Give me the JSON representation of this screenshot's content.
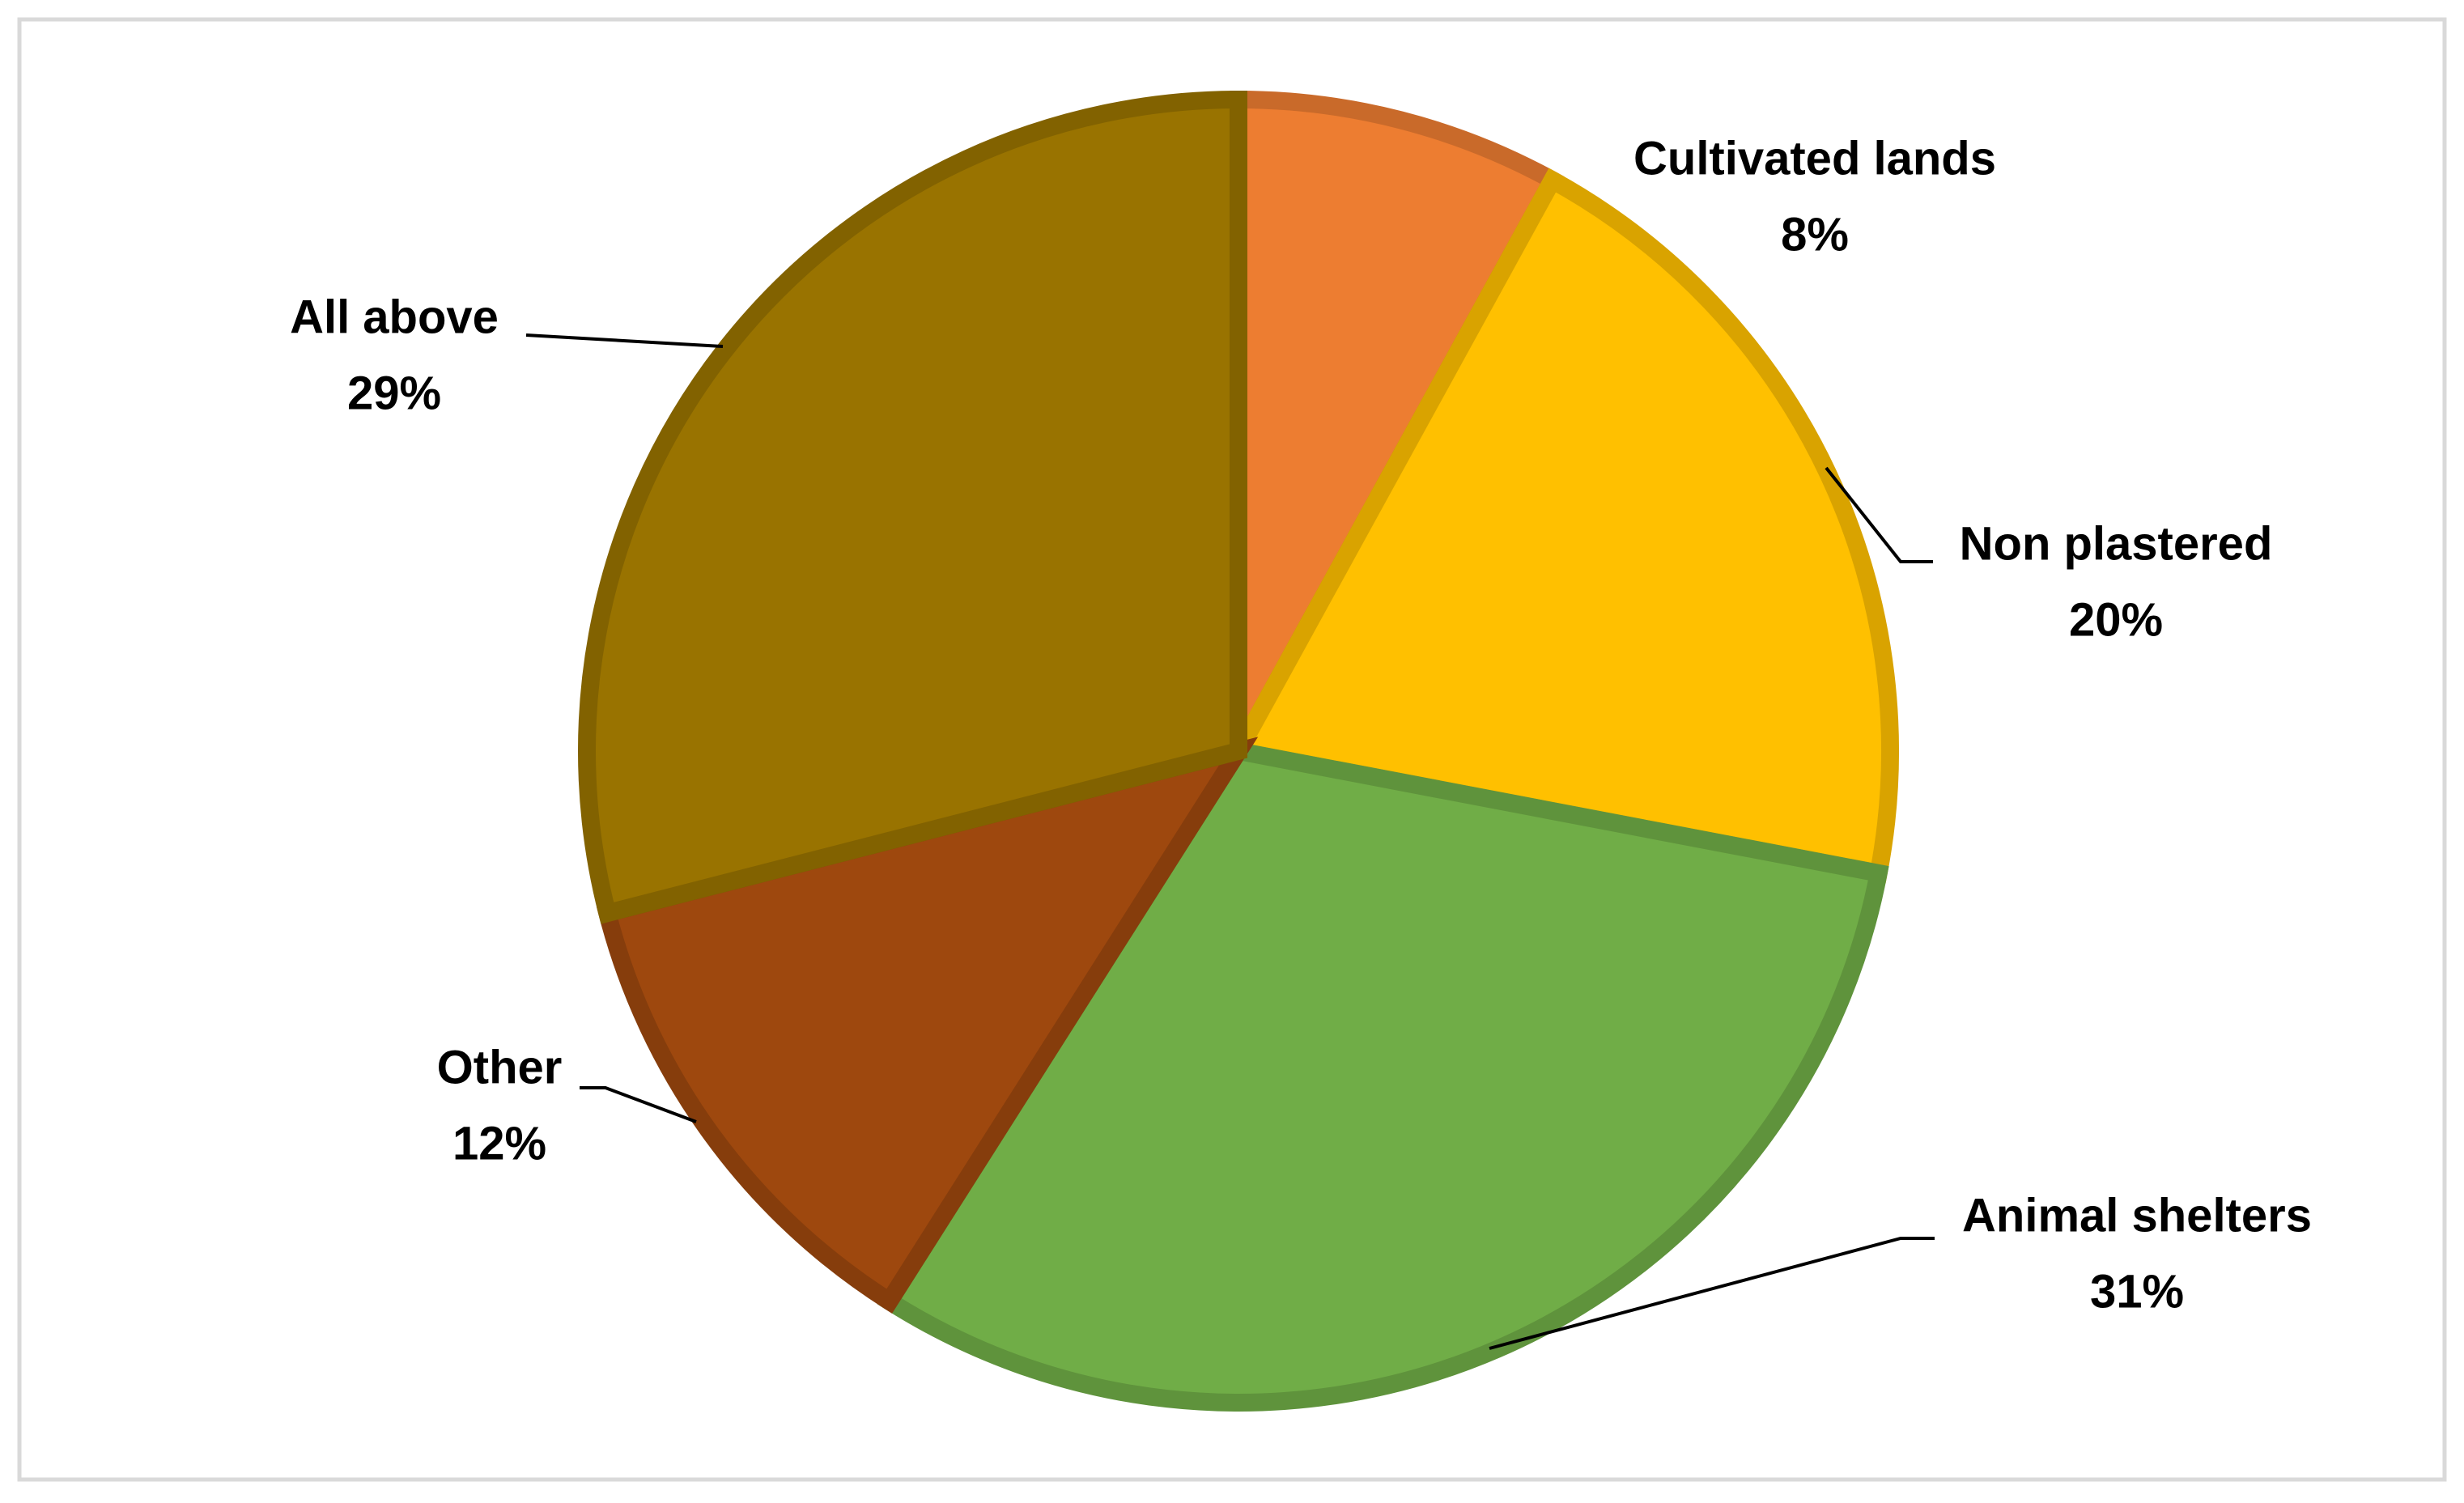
{
  "chart_data": {
    "type": "pie",
    "categories": [
      "Cultivated lands",
      "Non plastered",
      "Animal shelters",
      "Other",
      "All above"
    ],
    "values": [
      8,
      20,
      31,
      12,
      29
    ],
    "value_labels": [
      "8%",
      "20%",
      "31%",
      "12%",
      "29%"
    ],
    "colors": [
      "#ED7D31",
      "#FFC000",
      "#70AD47",
      "#9E480E",
      "#997300"
    ]
  }
}
